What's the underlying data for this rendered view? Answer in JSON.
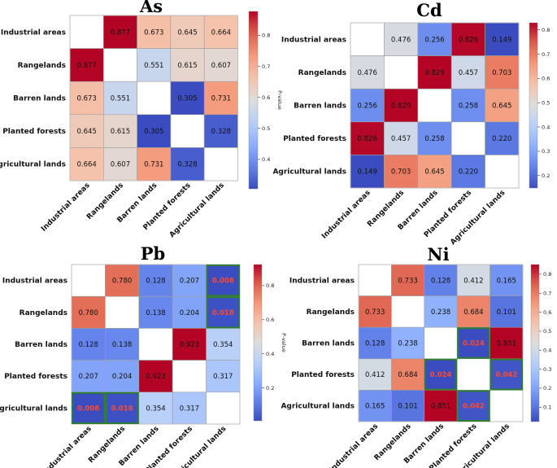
{
  "chart_data": [
    {
      "type": "heatmap",
      "title": "As",
      "rows": [
        "Industrial areas",
        "Rangelands",
        "Barren lands",
        "Planted forests",
        "Agricultural lands"
      ],
      "cols": [
        "Industrial areas",
        "Rangelands",
        "Barren lands",
        "Planted forests",
        "Agricultural lands"
      ],
      "values": [
        [
          null,
          0.877,
          0.673,
          0.645,
          0.664
        ],
        [
          0.877,
          null,
          0.551,
          0.615,
          0.607
        ],
        [
          0.673,
          0.551,
          null,
          0.305,
          0.731
        ],
        [
          0.645,
          0.615,
          0.305,
          null,
          0.328
        ],
        [
          0.664,
          0.607,
          0.731,
          0.328,
          null
        ]
      ],
      "labels": [
        [
          "",
          "0.877",
          "0.673",
          "0.645",
          "0.664"
        ],
        [
          "0.877",
          "",
          "0.551",
          "0.615",
          "0.607"
        ],
        [
          "0.673",
          "0.551",
          "",
          "0.305",
          "0.731"
        ],
        [
          "0.645",
          "0.615",
          "0.305",
          "",
          "0.328"
        ],
        [
          "0.664",
          "0.607",
          "0.731",
          "0.328",
          ""
        ]
      ],
      "significant": [],
      "colorbar": {
        "label": "P-value",
        "range": [
          0.305,
          0.877
        ],
        "ticks": [
          0.4,
          0.5,
          0.6,
          0.7,
          0.8
        ],
        "tick_labels": [
          "0.4",
          "0.5",
          "0.6",
          "0.7",
          "0.8"
        ]
      }
    },
    {
      "type": "heatmap",
      "title": "Cd",
      "rows": [
        "Industrial areas",
        "Rangelands",
        "Barren lands",
        "Planted forests",
        "Agricultural lands"
      ],
      "cols": [
        "Industrial areas",
        "Rangelands",
        "Barren lands",
        "Planted forests",
        "Agricultural lands"
      ],
      "values": [
        [
          null,
          0.476,
          0.256,
          0.826,
          0.149
        ],
        [
          0.476,
          null,
          0.829,
          0.457,
          0.703
        ],
        [
          0.256,
          0.829,
          null,
          0.258,
          0.645
        ],
        [
          0.826,
          0.457,
          0.258,
          null,
          0.22
        ],
        [
          0.149,
          0.703,
          0.645,
          0.22,
          null
        ]
      ],
      "labels": [
        [
          "",
          "0.476",
          "0.256",
          "0.826",
          "0.149"
        ],
        [
          "0.476",
          "",
          "0.829",
          "0.457",
          "0.703"
        ],
        [
          "0.256",
          "0.829",
          "",
          "0.258",
          "0.645"
        ],
        [
          "0.826",
          "0.457",
          "0.258",
          "",
          "0.220"
        ],
        [
          "0.149",
          "0.703",
          "0.645",
          "0.220",
          ""
        ]
      ],
      "significant": [],
      "colorbar": {
        "label": "P-value",
        "range": [
          0.149,
          0.829
        ],
        "ticks": [
          0.2,
          0.3,
          0.4,
          0.5,
          0.6,
          0.7,
          0.8
        ],
        "tick_labels": [
          "0.2",
          "0.3",
          "0.4",
          "0.5",
          "0.6",
          "0.7",
          "0.8"
        ]
      }
    },
    {
      "type": "heatmap",
      "title": "Pb",
      "rows": [
        "Industrial areas",
        "Rangelands",
        "Barren lands",
        "Planted forests",
        "Agricultural lands"
      ],
      "cols": [
        "Industrial areas",
        "Rangelands",
        "Barren lands",
        "Planted forests",
        "Agricultural lands"
      ],
      "values": [
        [
          null,
          0.78,
          0.128,
          0.207,
          0.008
        ],
        [
          0.78,
          null,
          0.138,
          0.204,
          0.018
        ],
        [
          0.128,
          0.138,
          null,
          0.923,
          0.354
        ],
        [
          0.207,
          0.204,
          0.923,
          null,
          0.317
        ],
        [
          0.008,
          0.018,
          0.354,
          0.317,
          null
        ]
      ],
      "labels": [
        [
          "",
          "0.780",
          "0.128",
          "0.207",
          "0.008"
        ],
        [
          "0.780",
          "",
          "0.138",
          "0.204",
          "0.018"
        ],
        [
          "0.128",
          "0.138",
          "",
          "0.923",
          "0.354"
        ],
        [
          "0.207",
          "0.204",
          "0.923",
          "",
          "0.317"
        ],
        [
          "0.008",
          "0.018",
          "0.354",
          "0.317",
          ""
        ]
      ],
      "significant": [
        [
          0,
          4
        ],
        [
          1,
          4
        ],
        [
          4,
          0
        ],
        [
          4,
          1
        ]
      ],
      "colorbar": {
        "label": "P-value",
        "range": [
          0.008,
          0.923
        ],
        "ticks": [
          0.2,
          0.4,
          0.6,
          0.8
        ],
        "tick_labels": [
          "0.2",
          "0.4",
          "0.6",
          "0.8"
        ]
      }
    },
    {
      "type": "heatmap",
      "title": "Ni",
      "rows": [
        "Industrial areas",
        "Rangelands",
        "Barren lands",
        "Planted forests",
        "Agricultural lands"
      ],
      "cols": [
        "Industrial areas",
        "Rangelands",
        "Barren lands",
        "Planted forests",
        "Agricultural lands"
      ],
      "values": [
        [
          null,
          0.733,
          0.128,
          0.412,
          0.165
        ],
        [
          0.733,
          null,
          0.238,
          0.684,
          0.101
        ],
        [
          0.128,
          0.238,
          null,
          0.024,
          0.851
        ],
        [
          0.412,
          0.684,
          0.024,
          null,
          0.042
        ],
        [
          0.165,
          0.101,
          0.851,
          0.042,
          null
        ]
      ],
      "labels": [
        [
          "",
          "0.733",
          "0.128",
          "0.412",
          "0.165"
        ],
        [
          "0.733",
          "",
          "0.238",
          "0.684",
          "0.101"
        ],
        [
          "0.128",
          "0.238",
          "",
          "0.024",
          "0.851"
        ],
        [
          "0.412",
          "0.684",
          "0.024",
          "",
          "0.042"
        ],
        [
          "0.165",
          "0.101",
          "0.851",
          "0.042",
          ""
        ]
      ],
      "significant": [
        [
          2,
          3
        ],
        [
          3,
          2
        ],
        [
          3,
          4
        ],
        [
          4,
          3
        ]
      ],
      "colorbar": {
        "label": "P-value",
        "range": [
          0.024,
          0.851
        ],
        "ticks": [
          0.1,
          0.2,
          0.3,
          0.4,
          0.5,
          0.6,
          0.7,
          0.8
        ],
        "tick_labels": [
          "0.1",
          "0.2",
          "0.3",
          "0.4",
          "0.5",
          "0.6",
          "0.7",
          "0.8"
        ]
      }
    }
  ],
  "style": {
    "colormap": "coolwarm",
    "significant_text_color": "#ff4a2a",
    "significant_border_color": "#2e7d32",
    "cell_grid_color": "#9e9e9e"
  }
}
